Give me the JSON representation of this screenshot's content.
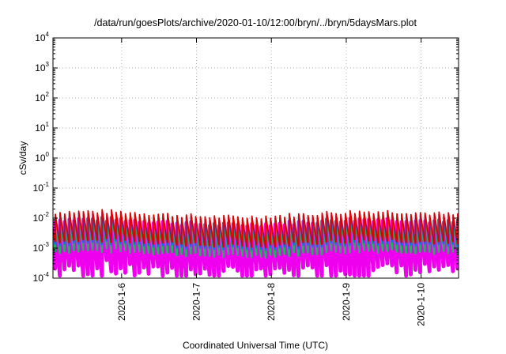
{
  "chart_data": {
    "type": "line",
    "title": "/data/run/goesPlots/archive/2020-01-10/12:00/bryn/../bryn/5daysMars.plot",
    "xlabel": "Coordinated Universal Time (UTC)",
    "ylabel": "cSv/day",
    "y_scale": "log",
    "ylim": [
      0.0001,
      10000
    ],
    "y_ticks": [
      {
        "base": "10",
        "exp": "4"
      },
      {
        "base": "10",
        "exp": "3"
      },
      {
        "base": "10",
        "exp": "2"
      },
      {
        "base": "10",
        "exp": "1"
      },
      {
        "base": "10",
        "exp": "0"
      },
      {
        "base": "10",
        "exp": "-1"
      },
      {
        "base": "10",
        "exp": "-2"
      },
      {
        "base": "10",
        "exp": "-3"
      },
      {
        "base": "10",
        "exp": "-4"
      }
    ],
    "xlim": [
      "2020-01-05T02:00",
      "2020-01-10T12:00"
    ],
    "x_ticks": [
      "2020-1-6",
      "2020-1-7",
      "2020-1-8",
      "2020-1-9",
      "2020-1-10"
    ],
    "grid": true,
    "legend": "none",
    "colors": {
      "red": "#e00000",
      "blue": "#2266ee",
      "green": "#20b060",
      "cyan": "#22bbdd",
      "magenta": "#ee00ee"
    },
    "series_pattern": {
      "period_hours": 1.5,
      "cycle_shape": "sawtooth (sharp rise, gradual decay)",
      "peak_range_red": [
        0.008,
        0.022
      ],
      "trough_range_magenta": [
        0.0001,
        0.0005
      ]
    }
  }
}
